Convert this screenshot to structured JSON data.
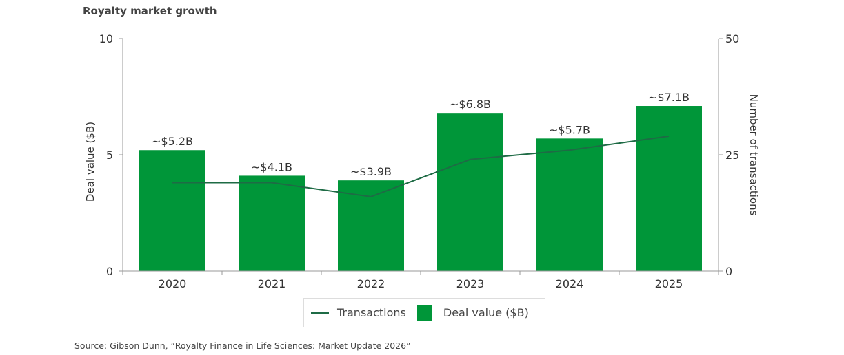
{
  "chart_data": {
    "type": "bar",
    "title": "Royalty market growth",
    "categories": [
      "2020",
      "2021",
      "2022",
      "2023",
      "2024",
      "2025"
    ],
    "series": [
      {
        "name": "Deal value ($B)",
        "type": "bar",
        "axis": "left",
        "values": [
          5.2,
          4.1,
          3.9,
          6.8,
          5.7,
          7.1
        ],
        "labels": [
          "~$5.2B",
          "~$4.1B",
          "~$3.9B",
          "~$6.8B",
          "~$5.7B",
          "~$7.1B"
        ],
        "color": "#009639"
      },
      {
        "name": "Transactions",
        "type": "line",
        "axis": "right",
        "values": [
          19,
          19,
          16,
          24,
          26,
          29
        ],
        "color": "#1e6b45"
      }
    ],
    "ylabel": "Deal value ($B)",
    "ylim": [
      0,
      10
    ],
    "yticks": [
      "0",
      "5",
      "10"
    ],
    "y2label": "Number of transactions",
    "y2lim": [
      0,
      50
    ],
    "y2ticks": [
      "0",
      "25",
      "50"
    ],
    "grid": false,
    "legend": "bottom"
  },
  "source": "Source: Gibson Dunn, “Royalty Finance in Life Sciences: Market Update 2026”"
}
